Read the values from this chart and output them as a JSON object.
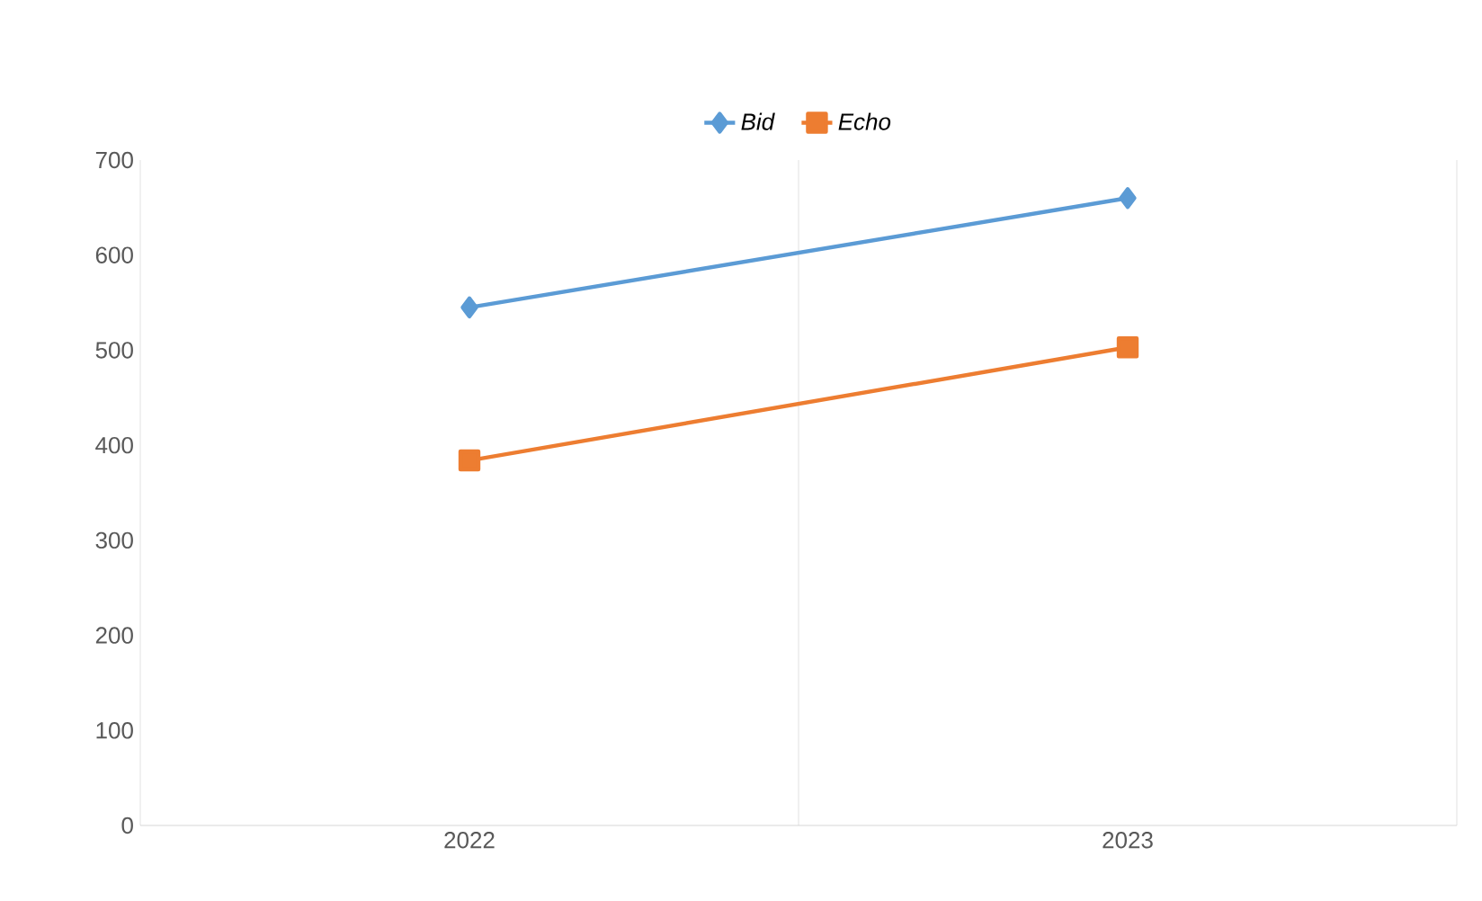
{
  "chart_data": {
    "type": "line",
    "categories": [
      "2022",
      "2023"
    ],
    "series": [
      {
        "name": "Bid",
        "color": "#5b9bd5",
        "marker": "diamond",
        "values": [
          545,
          660
        ]
      },
      {
        "name": "Echo",
        "color": "#ed7d31",
        "marker": "square",
        "values": [
          384,
          503
        ]
      }
    ],
    "ylim": [
      0,
      700
    ],
    "yticks": [
      0,
      100,
      200,
      300,
      400,
      500,
      600,
      700
    ],
    "grid": "x",
    "legend": "top"
  }
}
